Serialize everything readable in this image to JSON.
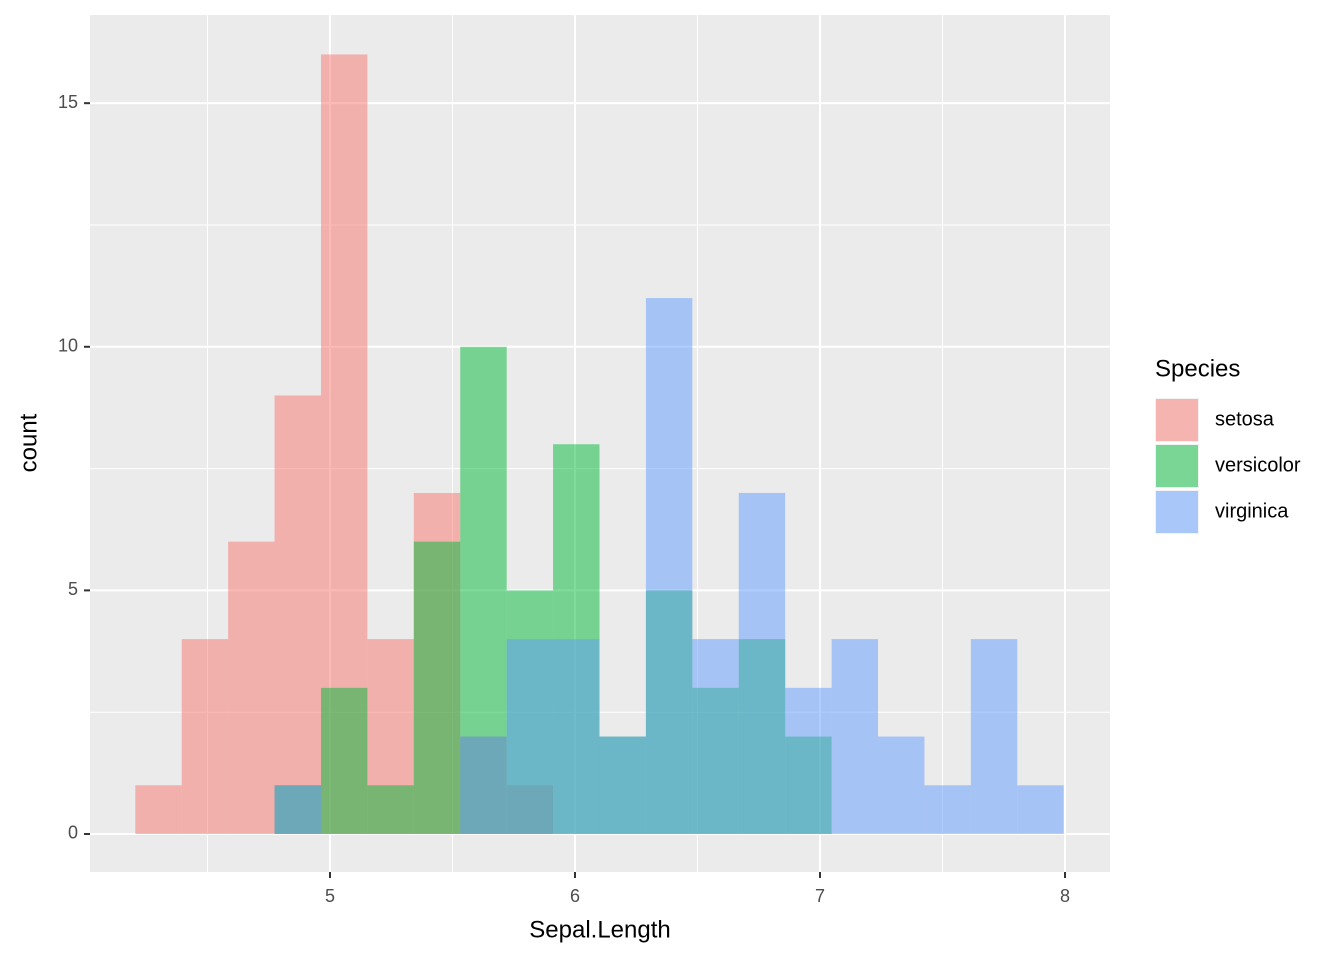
{
  "chart_data": {
    "type": "histogram",
    "x_label": "Sepal.Length",
    "y_label": "count",
    "legend_title": "Species",
    "bins": [
      4.2053,
      4.3947,
      4.5842,
      4.7737,
      4.9632,
      5.1526,
      5.3421,
      5.5316,
      5.7211,
      5.9105,
      6.1,
      6.2895,
      6.4789,
      6.6684,
      6.8579,
      7.0474,
      7.2368,
      7.4263,
      7.6158,
      7.8053,
      7.9947
    ],
    "series": [
      {
        "name": "setosa",
        "color": "#F8766D",
        "values": [
          1,
          4,
          6,
          9,
          16,
          4,
          7,
          2,
          1,
          0,
          0,
          0,
          0,
          0,
          0,
          0,
          0,
          0,
          0,
          0
        ]
      },
      {
        "name": "versicolor",
        "color": "#00BA38",
        "values": [
          0,
          0,
          0,
          1,
          3,
          1,
          6,
          10,
          5,
          8,
          2,
          5,
          3,
          4,
          2,
          0,
          0,
          0,
          0,
          0
        ]
      },
      {
        "name": "virginica",
        "color": "#619CFF",
        "values": [
          0,
          0,
          0,
          1,
          0,
          0,
          0,
          2,
          4,
          4,
          2,
          11,
          4,
          7,
          3,
          4,
          2,
          1,
          4,
          1
        ]
      }
    ],
    "opacity": 0.5,
    "xlim": [
      4.0204,
      8.1837
    ],
    "xticks": [
      5,
      6,
      7,
      8
    ],
    "xminorticks": [
      4.5,
      5.5,
      6.5,
      7.5
    ],
    "ylim": [
      -0.78,
      16.81
    ],
    "yticks": [
      0,
      5,
      10,
      15
    ],
    "yminorticks": [
      2.5,
      7.5,
      12.5
    ],
    "grid": true,
    "legend": "right"
  }
}
